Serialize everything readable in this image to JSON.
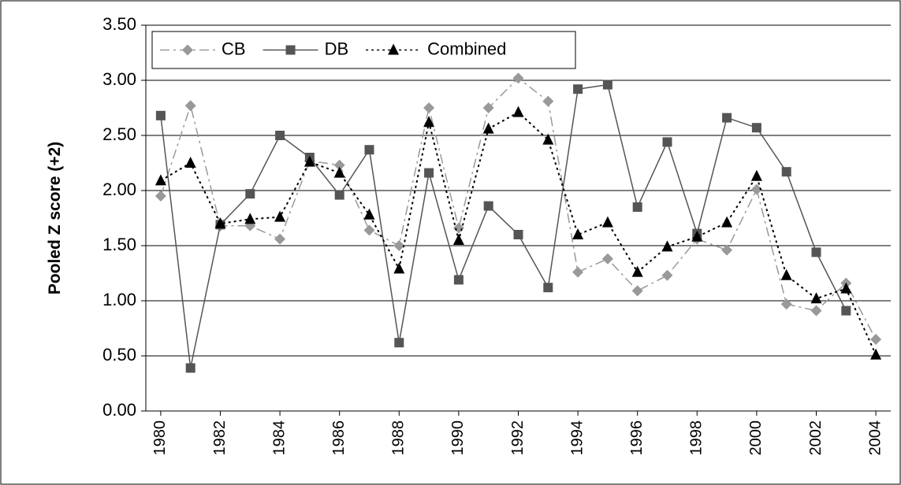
{
  "chart_data": {
    "type": "line",
    "ylabel": "Pooled Z score (+2)",
    "x": [
      1980,
      1981,
      1982,
      1983,
      1984,
      1985,
      1986,
      1987,
      1988,
      1989,
      1990,
      1991,
      1992,
      1993,
      1994,
      1995,
      1996,
      1997,
      1998,
      1999,
      2000,
      2001,
      2002,
      2003,
      2004
    ],
    "series": [
      {
        "name": "CB",
        "color": "#999999",
        "marker": "diamond",
        "dash": "dash-dot",
        "values": [
          1.95,
          2.77,
          1.68,
          1.68,
          1.56,
          2.27,
          2.23,
          1.64,
          1.5,
          2.75,
          1.66,
          2.75,
          3.02,
          2.81,
          1.26,
          1.38,
          1.09,
          1.23,
          1.56,
          1.46,
          2.01,
          0.97,
          0.91,
          1.16,
          0.65
        ]
      },
      {
        "name": "DB",
        "color": "#555555",
        "marker": "square",
        "dash": "solid",
        "values": [
          2.68,
          0.39,
          1.69,
          1.97,
          2.5,
          2.3,
          1.96,
          2.37,
          0.62,
          2.16,
          1.19,
          1.86,
          1.6,
          1.12,
          2.92,
          2.96,
          1.85,
          2.44,
          1.61,
          2.66,
          2.57,
          2.17,
          1.44,
          0.91,
          null
        ]
      },
      {
        "name": "Combined",
        "color": "#000000",
        "marker": "triangle",
        "dash": "dotted",
        "values": [
          2.09,
          2.25,
          1.7,
          1.74,
          1.76,
          2.26,
          2.16,
          1.78,
          1.29,
          2.62,
          1.55,
          2.56,
          2.71,
          2.46,
          1.6,
          1.71,
          1.26,
          1.49,
          1.58,
          1.71,
          2.13,
          1.23,
          1.02,
          1.11,
          0.51
        ]
      }
    ],
    "xlim": [
      1979.5,
      2004.5
    ],
    "xticks": [
      1980,
      1982,
      1984,
      1986,
      1988,
      1990,
      1992,
      1994,
      1996,
      1998,
      2000,
      2002,
      2004
    ],
    "ylim": [
      0,
      3.5
    ],
    "yticks": [
      {
        "value": 0,
        "label": "0.00"
      },
      {
        "value": 0.5,
        "label": "0.50"
      },
      {
        "value": 1,
        "label": "1.00"
      },
      {
        "value": 1.5,
        "label": "1.50"
      },
      {
        "value": 2,
        "label": "2.00"
      },
      {
        "value": 2.5,
        "label": "2.50"
      },
      {
        "value": 3,
        "label": "3.00"
      },
      {
        "value": 3.5,
        "label": "3.50"
      }
    ],
    "grid": true,
    "legend": "top-left"
  }
}
